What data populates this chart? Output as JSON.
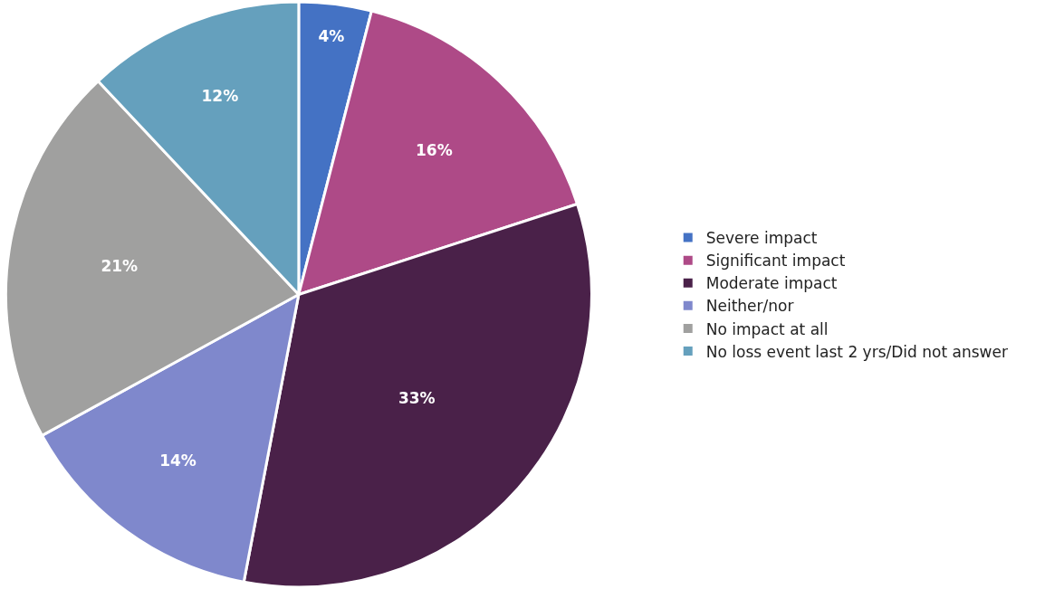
{
  "chart_data": {
    "type": "pie",
    "categories": [
      "Severe impact",
      "Significant impact",
      "Moderate impact",
      "Neither/nor",
      "No impact at all",
      "No loss event last 2 yrs/Did not answer"
    ],
    "values": [
      4,
      16,
      33,
      14,
      21,
      12
    ],
    "colors": [
      "#4472c4",
      "#ae4a87",
      "#4a2149",
      "#7f88cc",
      "#a0a09f",
      "#65a0bd"
    ],
    "value_labels": [
      "4%",
      "16%",
      "33%",
      "14%",
      "21%",
      "12%"
    ],
    "legend": "right"
  }
}
